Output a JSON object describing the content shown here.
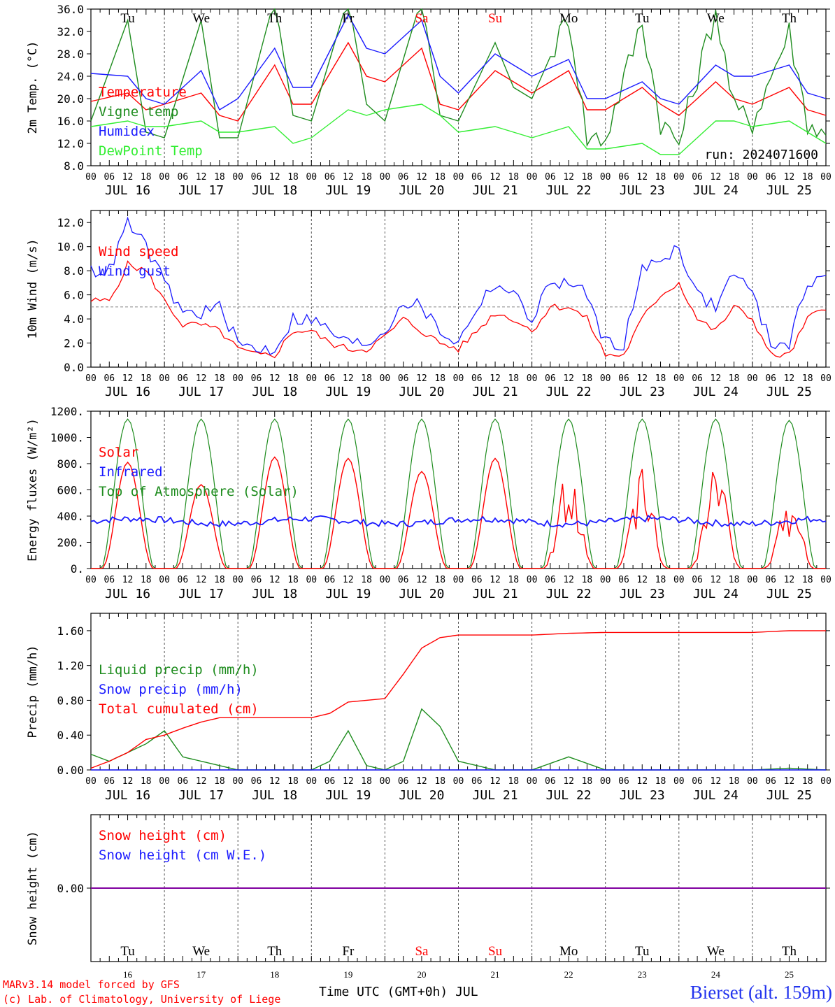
{
  "days": [
    "Tu",
    "We",
    "Th",
    "Fr",
    "Sa",
    "Su",
    "Mo",
    "Tu",
    "We",
    "Th"
  ],
  "weekend_flags": [
    false,
    false,
    false,
    false,
    true,
    true,
    false,
    false,
    false,
    false
  ],
  "hour_labels": [
    "00",
    "06",
    "12",
    "18"
  ],
  "date_labels": [
    "JUL 16",
    "JUL 17",
    "JUL 18",
    "JUL 19",
    "JUL 20",
    "JUL 21",
    "JUL 22",
    "JUL 23",
    "JUL 24",
    "JUL 25"
  ],
  "bottom_day_numbers": [
    "16",
    "17",
    "18",
    "19",
    "20",
    "21",
    "22",
    "23",
    "24",
    "25"
  ],
  "footer": {
    "model": "MARv3.14 model forced by GFS",
    "copyright": "(c) Lab. of Climatology, University of Liege",
    "time_axis": "Time UTC (GMT+0h) JUL",
    "station": "Bierset (alt. 159m)"
  },
  "colors": {
    "red": "#ff0000",
    "green": "#1e8c1e",
    "blue": "#1a1aff",
    "lightgreen": "#33ee33",
    "purple": "#8000a0"
  },
  "chart_data": [
    {
      "type": "line",
      "ylabel": "2m Temp. (°C)",
      "ylim": [
        8,
        36
      ],
      "yticks": [
        "8.0",
        "12.0",
        "16.0",
        "20.0",
        "24.0",
        "28.0",
        "32.0",
        "36.0"
      ],
      "run_label": "run: 2024071600",
      "x": [
        0,
        12,
        18,
        24,
        36,
        42,
        48,
        60,
        66,
        72,
        84,
        90,
        96,
        108,
        114,
        120,
        132,
        138,
        144,
        156,
        162,
        168,
        180,
        186,
        192,
        204,
        210,
        216,
        228,
        234,
        240
      ],
      "series": [
        {
          "name": "Temperature",
          "color": "red",
          "values": [
            19.5,
            21,
            18,
            19,
            21,
            17,
            16,
            26,
            19,
            19,
            30,
            24,
            23,
            29,
            19,
            18,
            25,
            23,
            21,
            25,
            18,
            18,
            22,
            19,
            17,
            23,
            20,
            19,
            22,
            18,
            17
          ]
        },
        {
          "name": "Vigne temp",
          "color": "green",
          "values": [
            16,
            34,
            14,
            13,
            34,
            13,
            13,
            38,
            17,
            16,
            38,
            19,
            16,
            38,
            17,
            16,
            30,
            22,
            20,
            35,
            13,
            13,
            34,
            16,
            12,
            36,
            18,
            16,
            32,
            16,
            13
          ]
        },
        {
          "name": "Humidex",
          "color": "blue",
          "values": [
            24.5,
            24,
            20,
            19,
            25,
            18,
            20,
            29,
            22,
            22,
            35,
            29,
            28,
            34,
            24,
            21,
            28,
            26,
            24,
            27,
            20,
            20,
            23,
            20,
            19,
            26,
            24,
            24,
            26,
            21,
            20
          ]
        },
        {
          "name": "DewPoint Temp",
          "color": "lightgreen",
          "values": [
            15,
            16,
            15,
            15,
            16,
            14,
            14,
            15,
            12,
            13,
            18,
            17,
            18,
            19,
            17,
            14,
            15,
            14,
            13,
            15,
            11,
            11,
            12,
            10,
            10,
            16,
            16,
            15,
            16,
            14,
            12
          ]
        }
      ]
    },
    {
      "type": "line",
      "ylabel": "10m Wind (m/s)",
      "ylim": [
        0,
        13
      ],
      "yticks": [
        "0.0",
        "2.0",
        "4.0",
        "6.0",
        "8.0",
        "10.0",
        "12.0"
      ],
      "reference_line": 5,
      "x": [
        0,
        6,
        12,
        18,
        24,
        30,
        36,
        42,
        48,
        54,
        60,
        66,
        72,
        78,
        84,
        90,
        96,
        102,
        108,
        114,
        120,
        126,
        132,
        138,
        144,
        150,
        156,
        162,
        168,
        174,
        180,
        186,
        192,
        198,
        204,
        210,
        216,
        222,
        228,
        234,
        240
      ],
      "series": [
        {
          "name": "Wind speed",
          "color": "red",
          "values": [
            5.5,
            5.5,
            8.5,
            8,
            5.5,
            3.5,
            3.5,
            3,
            1.5,
            1,
            1,
            3,
            3,
            2,
            1.5,
            1.5,
            2.5,
            4,
            3,
            2,
            1.5,
            3,
            4.5,
            4,
            3,
            5,
            5,
            4,
            1,
            1,
            4,
            6,
            7,
            4,
            3,
            5,
            4,
            1,
            1,
            4,
            5
          ]
        },
        {
          "name": "Wind gust",
          "color": "blue",
          "values": [
            8,
            8,
            12,
            10,
            7,
            4.5,
            4.5,
            5,
            2,
            1.5,
            1.5,
            4,
            4,
            3,
            2,
            2,
            3,
            5.5,
            5,
            3,
            2,
            5,
            7,
            6,
            4,
            7,
            7,
            6,
            2,
            2,
            8,
            9,
            10,
            6,
            5,
            8,
            6,
            2,
            2,
            7,
            8
          ]
        }
      ]
    },
    {
      "type": "line",
      "ylabel": "Energy fluxes (W/m²)",
      "ylim": [
        0,
        1200
      ],
      "yticks": [
        "0.",
        "200.",
        "400.",
        "600.",
        "800.",
        "1000.",
        "1200."
      ],
      "series": [
        {
          "name": "Solar",
          "color": "red",
          "daily_peaks": [
            810,
            640,
            850,
            840,
            740,
            840,
            760,
            800,
            840,
            600
          ]
        },
        {
          "name": "Infrared",
          "color": "blue",
          "baseline": 360
        },
        {
          "name": "Top of Atmosphere (Solar)",
          "color": "green",
          "daily_peaks": [
            1140,
            1140,
            1140,
            1140,
            1140,
            1140,
            1140,
            1140,
            1140,
            1130
          ]
        }
      ]
    },
    {
      "type": "line",
      "ylabel": "Precip (mm/h)",
      "ylim": [
        0,
        1.8
      ],
      "yticks": [
        "0.00",
        "0.40",
        "0.80",
        "1.20",
        "1.60"
      ],
      "x": [
        0,
        6,
        12,
        18,
        24,
        30,
        36,
        42,
        48,
        60,
        72,
        78,
        84,
        90,
        96,
        102,
        108,
        114,
        120,
        132,
        144,
        156,
        168,
        180,
        192,
        204,
        216,
        228,
        240
      ],
      "series": [
        {
          "name": "Liquid precip (mm/h)",
          "color": "green",
          "values": [
            0.18,
            0.1,
            0.2,
            0.3,
            0.45,
            0.15,
            0.1,
            0.05,
            0,
            0,
            0,
            0.1,
            0.45,
            0.05,
            0,
            0.1,
            0.7,
            0.5,
            0.1,
            0,
            0,
            0.15,
            0,
            0,
            0,
            0,
            0,
            0.02,
            0
          ]
        },
        {
          "name": "Snow precip (mm/h)",
          "color": "blue",
          "values": [
            0,
            0,
            0,
            0,
            0,
            0,
            0,
            0,
            0,
            0,
            0,
            0,
            0,
            0,
            0,
            0,
            0,
            0,
            0,
            0,
            0,
            0,
            0,
            0,
            0,
            0,
            0,
            0,
            0
          ]
        },
        {
          "name": "Total cumulated (cm)",
          "color": "red",
          "values": [
            0.02,
            0.1,
            0.2,
            0.35,
            0.4,
            0.48,
            0.55,
            0.6,
            0.6,
            0.6,
            0.6,
            0.65,
            0.78,
            0.8,
            0.82,
            1.1,
            1.4,
            1.52,
            1.55,
            1.55,
            1.55,
            1.57,
            1.58,
            1.58,
            1.58,
            1.58,
            1.58,
            1.6,
            1.6
          ]
        }
      ]
    },
    {
      "type": "line",
      "ylabel": "Snow height (cm)",
      "ylim": [
        -1,
        1
      ],
      "yticks": [
        "0.00"
      ],
      "series": [
        {
          "name": "Snow height (cm)",
          "color": "red",
          "values": [
            0,
            0
          ]
        },
        {
          "name": "Snow height (cm W.E.)",
          "color": "blue",
          "values": [
            0,
            0
          ]
        }
      ]
    }
  ]
}
